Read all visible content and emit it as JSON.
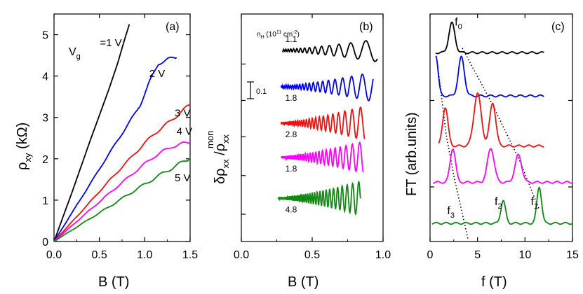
{
  "colors": {
    "black": "#000000",
    "blue": "#0000ee",
    "red": "#ee1111",
    "magenta": "#ff00ff",
    "green": "#118811"
  },
  "chart_data": [
    {
      "panel": "(a)",
      "type": "line",
      "xlabel_main": "B",
      "xlabel_unit": "(T)",
      "ylabel_main": "ρ",
      "ylabel_sub": "xy",
      "ylabel_unit": "(kΩ)",
      "xlim": [
        0,
        1.5
      ],
      "ylim": [
        0,
        5.5
      ],
      "xticks": [
        0,
        0.5,
        1.0,
        1.5
      ],
      "xtick_labels": [
        "0.0",
        "0.5",
        "1.0",
        "1.5"
      ],
      "yticks": [
        0,
        1,
        2,
        3,
        4,
        5
      ],
      "ytick_labels": [
        "0",
        "1",
        "2",
        "3",
        "4",
        "5"
      ],
      "label_prefix": "V",
      "label_prefix_sub": "g",
      "series": [
        {
          "name": "=1 V",
          "color": "#000000",
          "x": [
            0,
            0.2,
            0.4,
            0.6,
            0.7,
            0.78,
            0.83
          ],
          "y": [
            0,
            1.2,
            2.45,
            3.65,
            4.3,
            4.9,
            5.25
          ]
        },
        {
          "name": "2 V",
          "color": "#0000ee",
          "x": [
            0,
            0.3,
            0.6,
            0.85,
            0.95,
            1.05,
            1.15,
            1.25,
            1.35
          ],
          "y": [
            0,
            1.05,
            2.1,
            2.95,
            3.3,
            3.85,
            4.3,
            4.4,
            4.45
          ]
        },
        {
          "name": "3 V",
          "color": "#ee1111",
          "x": [
            0,
            0.3,
            0.6,
            0.9,
            1.1,
            1.25,
            1.38,
            1.5
          ],
          "y": [
            0,
            0.72,
            1.45,
            2.15,
            2.6,
            2.85,
            3.1,
            3.3
          ]
        },
        {
          "name": "4 V",
          "color": "#ff00ff",
          "x": [
            0,
            0.3,
            0.6,
            0.9,
            1.1,
            1.3,
            1.5
          ],
          "y": [
            0,
            0.58,
            1.15,
            1.7,
            2.05,
            2.3,
            2.4
          ]
        },
        {
          "name": "5 V",
          "color": "#118811",
          "x": [
            0,
            0.3,
            0.6,
            0.9,
            1.2,
            1.5
          ],
          "y": [
            0,
            0.42,
            0.83,
            1.25,
            1.65,
            2.02
          ]
        }
      ]
    },
    {
      "panel": "(b)",
      "type": "line",
      "xlabel_main": "B",
      "xlabel_unit": "(T)",
      "ylabel_main": "δρ",
      "ylabel_sub": "xx",
      "ylabel_slash": "/ρ",
      "ylabel_sub2": "xx",
      "ylabel_sup": "mon",
      "xlim": [
        0,
        1.0
      ],
      "ylim": [
        0,
        1
      ],
      "xticks": [
        0,
        0.5,
        1.0
      ],
      "xtick_labels": [
        "0.0",
        "0.5",
        "1.0"
      ],
      "density_header_n": "n",
      "density_header_sub": "H",
      "density_header_unit": "(10",
      "density_header_exp": "11",
      "density_header_cm": "cm",
      "density_header_cm_exp": "-2",
      "density_header_close": ")",
      "scale_bar_label": "0.1",
      "scale_bar_value": 0.1,
      "series": [
        {
          "name": "1.1",
          "color": "#000000",
          "offset": 0.84
        },
        {
          "name": "1.8",
          "color": "#0000ee",
          "offset": 0.68
        },
        {
          "name": "2.8",
          "color": "#ee1111",
          "offset": 0.52
        },
        {
          "name": "1.8",
          "color": "#ff00ff",
          "offset": 0.37
        },
        {
          "name": "4.8",
          "color": "#118811",
          "offset": 0.19
        }
      ]
    },
    {
      "panel": "(c)",
      "type": "line",
      "xlabel_main": "f",
      "xlabel_unit": "(T)",
      "ylabel": "FT (arb.units)",
      "xlim": [
        0,
        15
      ],
      "ylim": [
        0,
        1
      ],
      "xticks": [
        0,
        5,
        10,
        15
      ],
      "xtick_labels": [
        "0",
        "5",
        "10",
        "15"
      ],
      "peak_labels": [
        {
          "main": "f",
          "sub": "0",
          "x": 2.6,
          "y": 0.95
        },
        {
          "main": "f",
          "sub": "1",
          "x": 10.6,
          "y": 0.16
        },
        {
          "main": "f",
          "sub": "2",
          "x": 6.8,
          "y": 0.16
        },
        {
          "main": "f",
          "sub": "3",
          "x": 1.8,
          "y": 0.12
        }
      ],
      "series": [
        {
          "color": "#000000",
          "baseline": 0.83,
          "peaks": [
            [
              2.3,
              0.13,
              0.45
            ]
          ]
        },
        {
          "color": "#0000ee",
          "baseline": 0.64,
          "peaks": [
            [
              0.6,
              0.18,
              0.35
            ],
            [
              3.3,
              0.17,
              0.45
            ]
          ]
        },
        {
          "color": "#ee1111",
          "baseline": 0.42,
          "peaks": [
            [
              1.6,
              0.17,
              0.4
            ],
            [
              5.0,
              0.23,
              0.55
            ],
            [
              6.6,
              0.19,
              0.45
            ]
          ]
        },
        {
          "color": "#ff00ff",
          "baseline": 0.26,
          "peaks": [
            [
              2.4,
              0.15,
              0.4
            ],
            [
              6.4,
              0.15,
              0.5
            ],
            [
              9.3,
              0.12,
              0.5
            ]
          ]
        },
        {
          "color": "#118811",
          "baseline": 0.08,
          "peaks": [
            [
              7.7,
              0.1,
              0.35
            ],
            [
              11.5,
              0.16,
              0.35
            ]
          ]
        }
      ],
      "dotted_lines": [
        {
          "x": [
            3.4,
            6.6,
            9.5,
            11.5
          ],
          "y": [
            0.85,
            0.6,
            0.35,
            0.14
          ]
        },
        {
          "x": [
            0.9,
            1.7,
            2.5,
            4.0
          ],
          "y": [
            0.74,
            0.47,
            0.29,
            0.01
          ]
        }
      ]
    }
  ]
}
